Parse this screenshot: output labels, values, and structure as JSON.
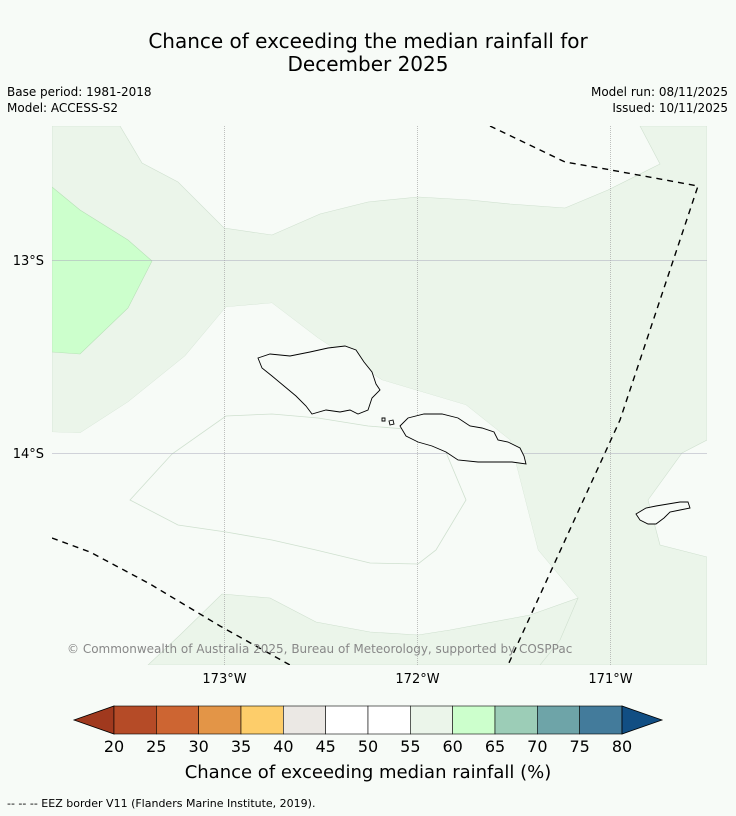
{
  "title_line1": "Chance of exceeding the median rainfall for",
  "title_line2": "December 2025",
  "base_period": "Base period: 1981-2018",
  "model": "Model: ACCESS-S2",
  "model_run": "Model run: 08/11/2025",
  "issued": "Issued: 10/11/2025",
  "lat_labels": [
    "13°S",
    "14°S"
  ],
  "lon_labels": [
    "173°W",
    "172°W",
    "171°W"
  ],
  "copyright": "© Commonwealth of Australia 2025, Bureau of Meteorology, supported by COSPPac",
  "colorbar": {
    "ticks": [
      "20",
      "25",
      "30",
      "35",
      "40",
      "45",
      "50",
      "55",
      "60",
      "65",
      "70",
      "75",
      "80"
    ],
    "colors": [
      "#a0391e",
      "#b54b27",
      "#cd6532",
      "#e39547",
      "#fdcd6a",
      "#ebe8e4",
      "#ffffff",
      "#ffffff",
      "#ebf5ea",
      "#ccffcc",
      "#9ccdb7",
      "#6ea4a8",
      "#437b9b",
      "#114e83"
    ],
    "label": "Chance of exceeding median rainfall (%)"
  },
  "footnote": "--  --  -- EEZ border V11 (Flanders Marine Institute, 2019)."
}
